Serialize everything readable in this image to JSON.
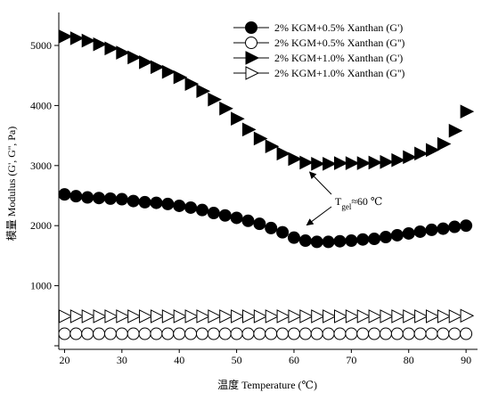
{
  "chart_data": {
    "type": "scatter",
    "xlabel": "温度 Temperature (℃)",
    "ylabel": "模量 Modulus (G', G'', Pa)",
    "xlim": [
      19,
      92
    ],
    "ylim": [
      0,
      5500
    ],
    "xticks": [
      20,
      30,
      40,
      50,
      60,
      70,
      80,
      90
    ],
    "yticks": [
      0,
      1000,
      2000,
      3000,
      4000,
      5000
    ],
    "x_tick_labels": [
      "20",
      "30",
      "40",
      "50",
      "60",
      "70",
      "80",
      "90"
    ],
    "y_tick_labels": [
      "",
      "1000",
      "2000",
      "3000",
      "4000",
      "5000"
    ],
    "grid": false,
    "legend_position": "top-right",
    "series": [
      {
        "name": "2% KGM+0.5% Xanthan (G')",
        "marker": "filled-circle",
        "x": [
          20,
          22,
          24,
          26,
          28,
          30,
          32,
          34,
          36,
          38,
          40,
          42,
          44,
          46,
          48,
          50,
          52,
          54,
          56,
          58,
          60,
          62,
          64,
          66,
          68,
          70,
          72,
          74,
          76,
          78,
          80,
          82,
          84,
          86,
          88,
          90
        ],
        "y": [
          2520,
          2490,
          2470,
          2460,
          2450,
          2440,
          2410,
          2390,
          2380,
          2360,
          2330,
          2300,
          2260,
          2210,
          2170,
          2130,
          2080,
          2030,
          1960,
          1890,
          1800,
          1750,
          1730,
          1730,
          1740,
          1750,
          1770,
          1780,
          1810,
          1840,
          1870,
          1900,
          1930,
          1950,
          1980,
          2000
        ]
      },
      {
        "name": "2% KGM+0.5% Xanthan (G'')",
        "marker": "open-circle",
        "x": [
          20,
          22,
          24,
          26,
          28,
          30,
          32,
          34,
          36,
          38,
          40,
          42,
          44,
          46,
          48,
          50,
          52,
          54,
          56,
          58,
          60,
          62,
          64,
          66,
          68,
          70,
          72,
          74,
          76,
          78,
          80,
          82,
          84,
          86,
          88,
          90
        ],
        "y": [
          200,
          200,
          200,
          200,
          200,
          200,
          200,
          200,
          200,
          200,
          200,
          200,
          200,
          200,
          200,
          200,
          200,
          200,
          200,
          200,
          200,
          200,
          200,
          200,
          200,
          200,
          200,
          200,
          200,
          200,
          200,
          200,
          200,
          200,
          200,
          200
        ]
      },
      {
        "name": "2% KGM+1.0% Xanthan (G')",
        "marker": "filled-triangle",
        "x": [
          20,
          22,
          24,
          26,
          28,
          30,
          32,
          34,
          36,
          38,
          40,
          42,
          44,
          46,
          48,
          50,
          52,
          54,
          56,
          58,
          60,
          62,
          64,
          66,
          68,
          70,
          72,
          74,
          76,
          78,
          80,
          82,
          84,
          86,
          88,
          90
        ],
        "y": [
          5150,
          5120,
          5080,
          5020,
          4950,
          4880,
          4800,
          4720,
          4640,
          4560,
          4470,
          4360,
          4240,
          4100,
          3950,
          3780,
          3600,
          3450,
          3320,
          3200,
          3110,
          3050,
          3030,
          3030,
          3040,
          3040,
          3040,
          3050,
          3060,
          3090,
          3140,
          3200,
          3260,
          3360,
          3580,
          3900
        ]
      },
      {
        "name": "2% KGM+1.0% Xanthan (G'')",
        "marker": "open-triangle",
        "x": [
          20,
          22,
          24,
          26,
          28,
          30,
          32,
          34,
          36,
          38,
          40,
          42,
          44,
          46,
          48,
          50,
          52,
          54,
          56,
          58,
          60,
          62,
          64,
          66,
          68,
          70,
          72,
          74,
          76,
          78,
          80,
          82,
          84,
          86,
          88,
          90
        ],
        "y": [
          490,
          490,
          490,
          490,
          490,
          490,
          490,
          490,
          490,
          490,
          490,
          490,
          490,
          490,
          490,
          490,
          490,
          490,
          490,
          490,
          490,
          490,
          490,
          490,
          490,
          490,
          490,
          490,
          490,
          490,
          490,
          490,
          490,
          490,
          490,
          500
        ]
      }
    ],
    "annotation": {
      "text_main": "T",
      "text_sub": "gel",
      "text_rest": "≈60 ℃",
      "targets": [
        {
          "x": 61.5,
          "y": 2980
        },
        {
          "x": 61.0,
          "y": 1950
        }
      ]
    }
  }
}
